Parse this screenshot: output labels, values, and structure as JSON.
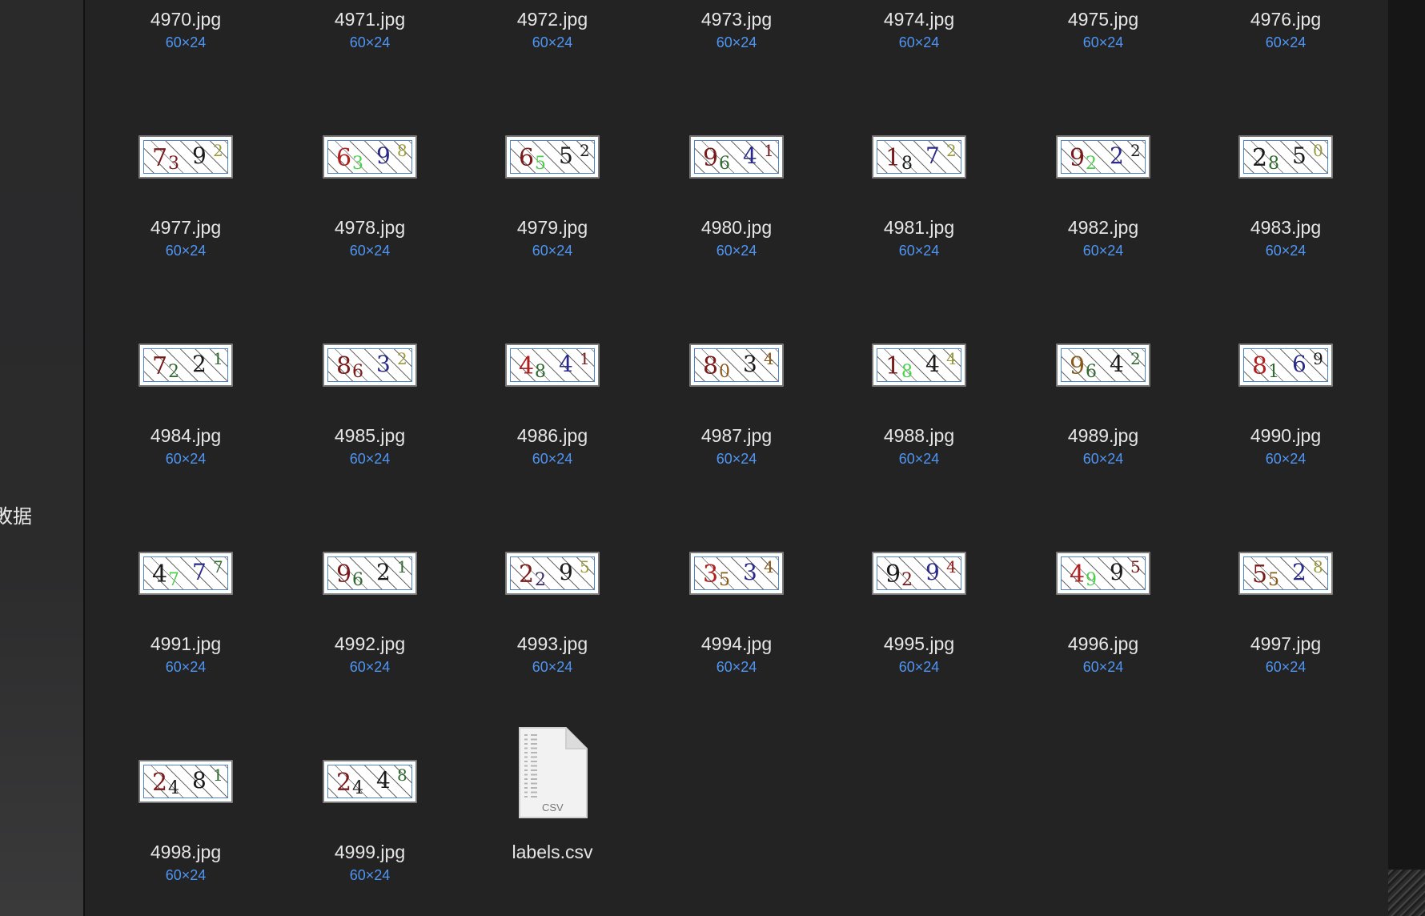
{
  "sidebar": {
    "items": [
      {
        "label": "数据",
        "visible_text": "敗据"
      }
    ]
  },
  "colors": {
    "background": "#232324",
    "filename_text": "#e6e6e6",
    "dimension_text": "#4f95f2",
    "captcha_palette": [
      "#7a1a1a",
      "#1b1b1b",
      "#2a2a8a",
      "#2f6a2f",
      "#9a9a3a",
      "#b02020",
      "#4ad04a",
      "#3a2a6a",
      "#8a5a1a"
    ]
  },
  "grid": {
    "rows": [
      {
        "items": [
          {
            "name": "4970.jpg",
            "dims": "60×24"
          },
          {
            "name": "4971.jpg",
            "dims": "60×24"
          },
          {
            "name": "4972.jpg",
            "dims": "60×24"
          },
          {
            "name": "4973.jpg",
            "dims": "60×24"
          },
          {
            "name": "4974.jpg",
            "dims": "60×24"
          },
          {
            "name": "4975.jpg",
            "dims": "60×24"
          },
          {
            "name": "4976.jpg",
            "dims": "60×24"
          }
        ]
      },
      {
        "items": [
          {
            "name": "4977.jpg",
            "dims": "60×24",
            "captcha": "7392",
            "colors": [
              "#7a1a1a",
              "#7a1a1a",
              "#1b1b1b",
              "#9a9a3a"
            ]
          },
          {
            "name": "4978.jpg",
            "dims": "60×24",
            "captcha": "6398",
            "colors": [
              "#b02020",
              "#4ad04a",
              "#2a2a8a",
              "#9a9a3a"
            ]
          },
          {
            "name": "4979.jpg",
            "dims": "60×24",
            "captcha": "6552",
            "colors": [
              "#7a1a1a",
              "#4ad04a",
              "#1b1b1b",
              "#1b1b1b"
            ]
          },
          {
            "name": "4980.jpg",
            "dims": "60×24",
            "captcha": "9641",
            "colors": [
              "#7a1a1a",
              "#2f6a2f",
              "#2a2a8a",
              "#7a1a1a"
            ]
          },
          {
            "name": "4981.jpg",
            "dims": "60×24",
            "captcha": "1872",
            "colors": [
              "#7a1a1a",
              "#1b1b1b",
              "#2a2a8a",
              "#9a9a3a"
            ]
          },
          {
            "name": "4982.jpg",
            "dims": "60×24",
            "captcha": "9222",
            "colors": [
              "#7a1a1a",
              "#4ad04a",
              "#2a2a8a",
              "#1b1b1b"
            ]
          },
          {
            "name": "4983.jpg",
            "dims": "60×24",
            "captcha": "2850",
            "colors": [
              "#1b1b1b",
              "#2f6a2f",
              "#1b1b1b",
              "#9a9a3a"
            ]
          }
        ]
      },
      {
        "items": [
          {
            "name": "4984.jpg",
            "dims": "60×24",
            "captcha": "7221",
            "colors": [
              "#7a1a1a",
              "#2f6a2f",
              "#1b1b1b",
              "#2f6a2f"
            ]
          },
          {
            "name": "4985.jpg",
            "dims": "60×24",
            "captcha": "8632",
            "colors": [
              "#7a1a1a",
              "#7a1a1a",
              "#2a2a8a",
              "#9a9a3a"
            ]
          },
          {
            "name": "4986.jpg",
            "dims": "60×24",
            "captcha": "4841",
            "colors": [
              "#b02020",
              "#2f6a2f",
              "#2a2a8a",
              "#7a1a1a"
            ]
          },
          {
            "name": "4987.jpg",
            "dims": "60×24",
            "captcha": "8034",
            "colors": [
              "#7a1a1a",
              "#8a5a1a",
              "#1b1b1b",
              "#8a5a1a"
            ]
          },
          {
            "name": "4988.jpg",
            "dims": "60×24",
            "captcha": "1844",
            "colors": [
              "#7a1a1a",
              "#4ad04a",
              "#1b1b1b",
              "#9a9a3a"
            ]
          },
          {
            "name": "4989.jpg",
            "dims": "60×24",
            "captcha": "9642",
            "colors": [
              "#8a5a1a",
              "#2f6a2f",
              "#1b1b1b",
              "#2f6a2f"
            ]
          },
          {
            "name": "4990.jpg",
            "dims": "60×24",
            "captcha": "8169",
            "colors": [
              "#b02020",
              "#2f6a2f",
              "#2a2a8a",
              "#1b1b1b"
            ]
          }
        ]
      },
      {
        "items": [
          {
            "name": "4991.jpg",
            "dims": "60×24",
            "captcha": "4777",
            "colors": [
              "#1b1b1b",
              "#4ad04a",
              "#2a2a8a",
              "#2f6a2f"
            ]
          },
          {
            "name": "4992.jpg",
            "dims": "60×24",
            "captcha": "9621",
            "colors": [
              "#7a1a1a",
              "#2f6a2f",
              "#1b1b1b",
              "#2f6a2f"
            ]
          },
          {
            "name": "4993.jpg",
            "dims": "60×24",
            "captcha": "2295",
            "colors": [
              "#7a1a1a",
              "#3a2a6a",
              "#1b1b1b",
              "#9a9a3a"
            ]
          },
          {
            "name": "4994.jpg",
            "dims": "60×24",
            "captcha": "3534",
            "colors": [
              "#b02020",
              "#8a5a1a",
              "#2a2a8a",
              "#8a5a1a"
            ]
          },
          {
            "name": "4995.jpg",
            "dims": "60×24",
            "captcha": "9294",
            "colors": [
              "#1b1b1b",
              "#7a1a1a",
              "#2a2a8a",
              "#b02020"
            ]
          },
          {
            "name": "4996.jpg",
            "dims": "60×24",
            "captcha": "4995",
            "colors": [
              "#b02020",
              "#4ad04a",
              "#1b1b1b",
              "#7a1a1a"
            ]
          },
          {
            "name": "4997.jpg",
            "dims": "60×24",
            "captcha": "5528",
            "colors": [
              "#7a1a1a",
              "#8a5a1a",
              "#2a2a8a",
              "#9a9a3a"
            ]
          }
        ]
      },
      {
        "items": [
          {
            "name": "4998.jpg",
            "dims": "60×24",
            "captcha": "2481",
            "colors": [
              "#7a1a1a",
              "#1b1b1b",
              "#1b1b1b",
              "#2f6a2f"
            ]
          },
          {
            "name": "4999.jpg",
            "dims": "60×24",
            "captcha": "2448",
            "colors": [
              "#7a1a1a",
              "#1b1b1b",
              "#1b1b1b",
              "#2f6a2f"
            ]
          },
          {
            "name": "labels.csv",
            "dims": "",
            "kind": "csv",
            "icon_text": "CSV"
          }
        ]
      }
    ]
  }
}
